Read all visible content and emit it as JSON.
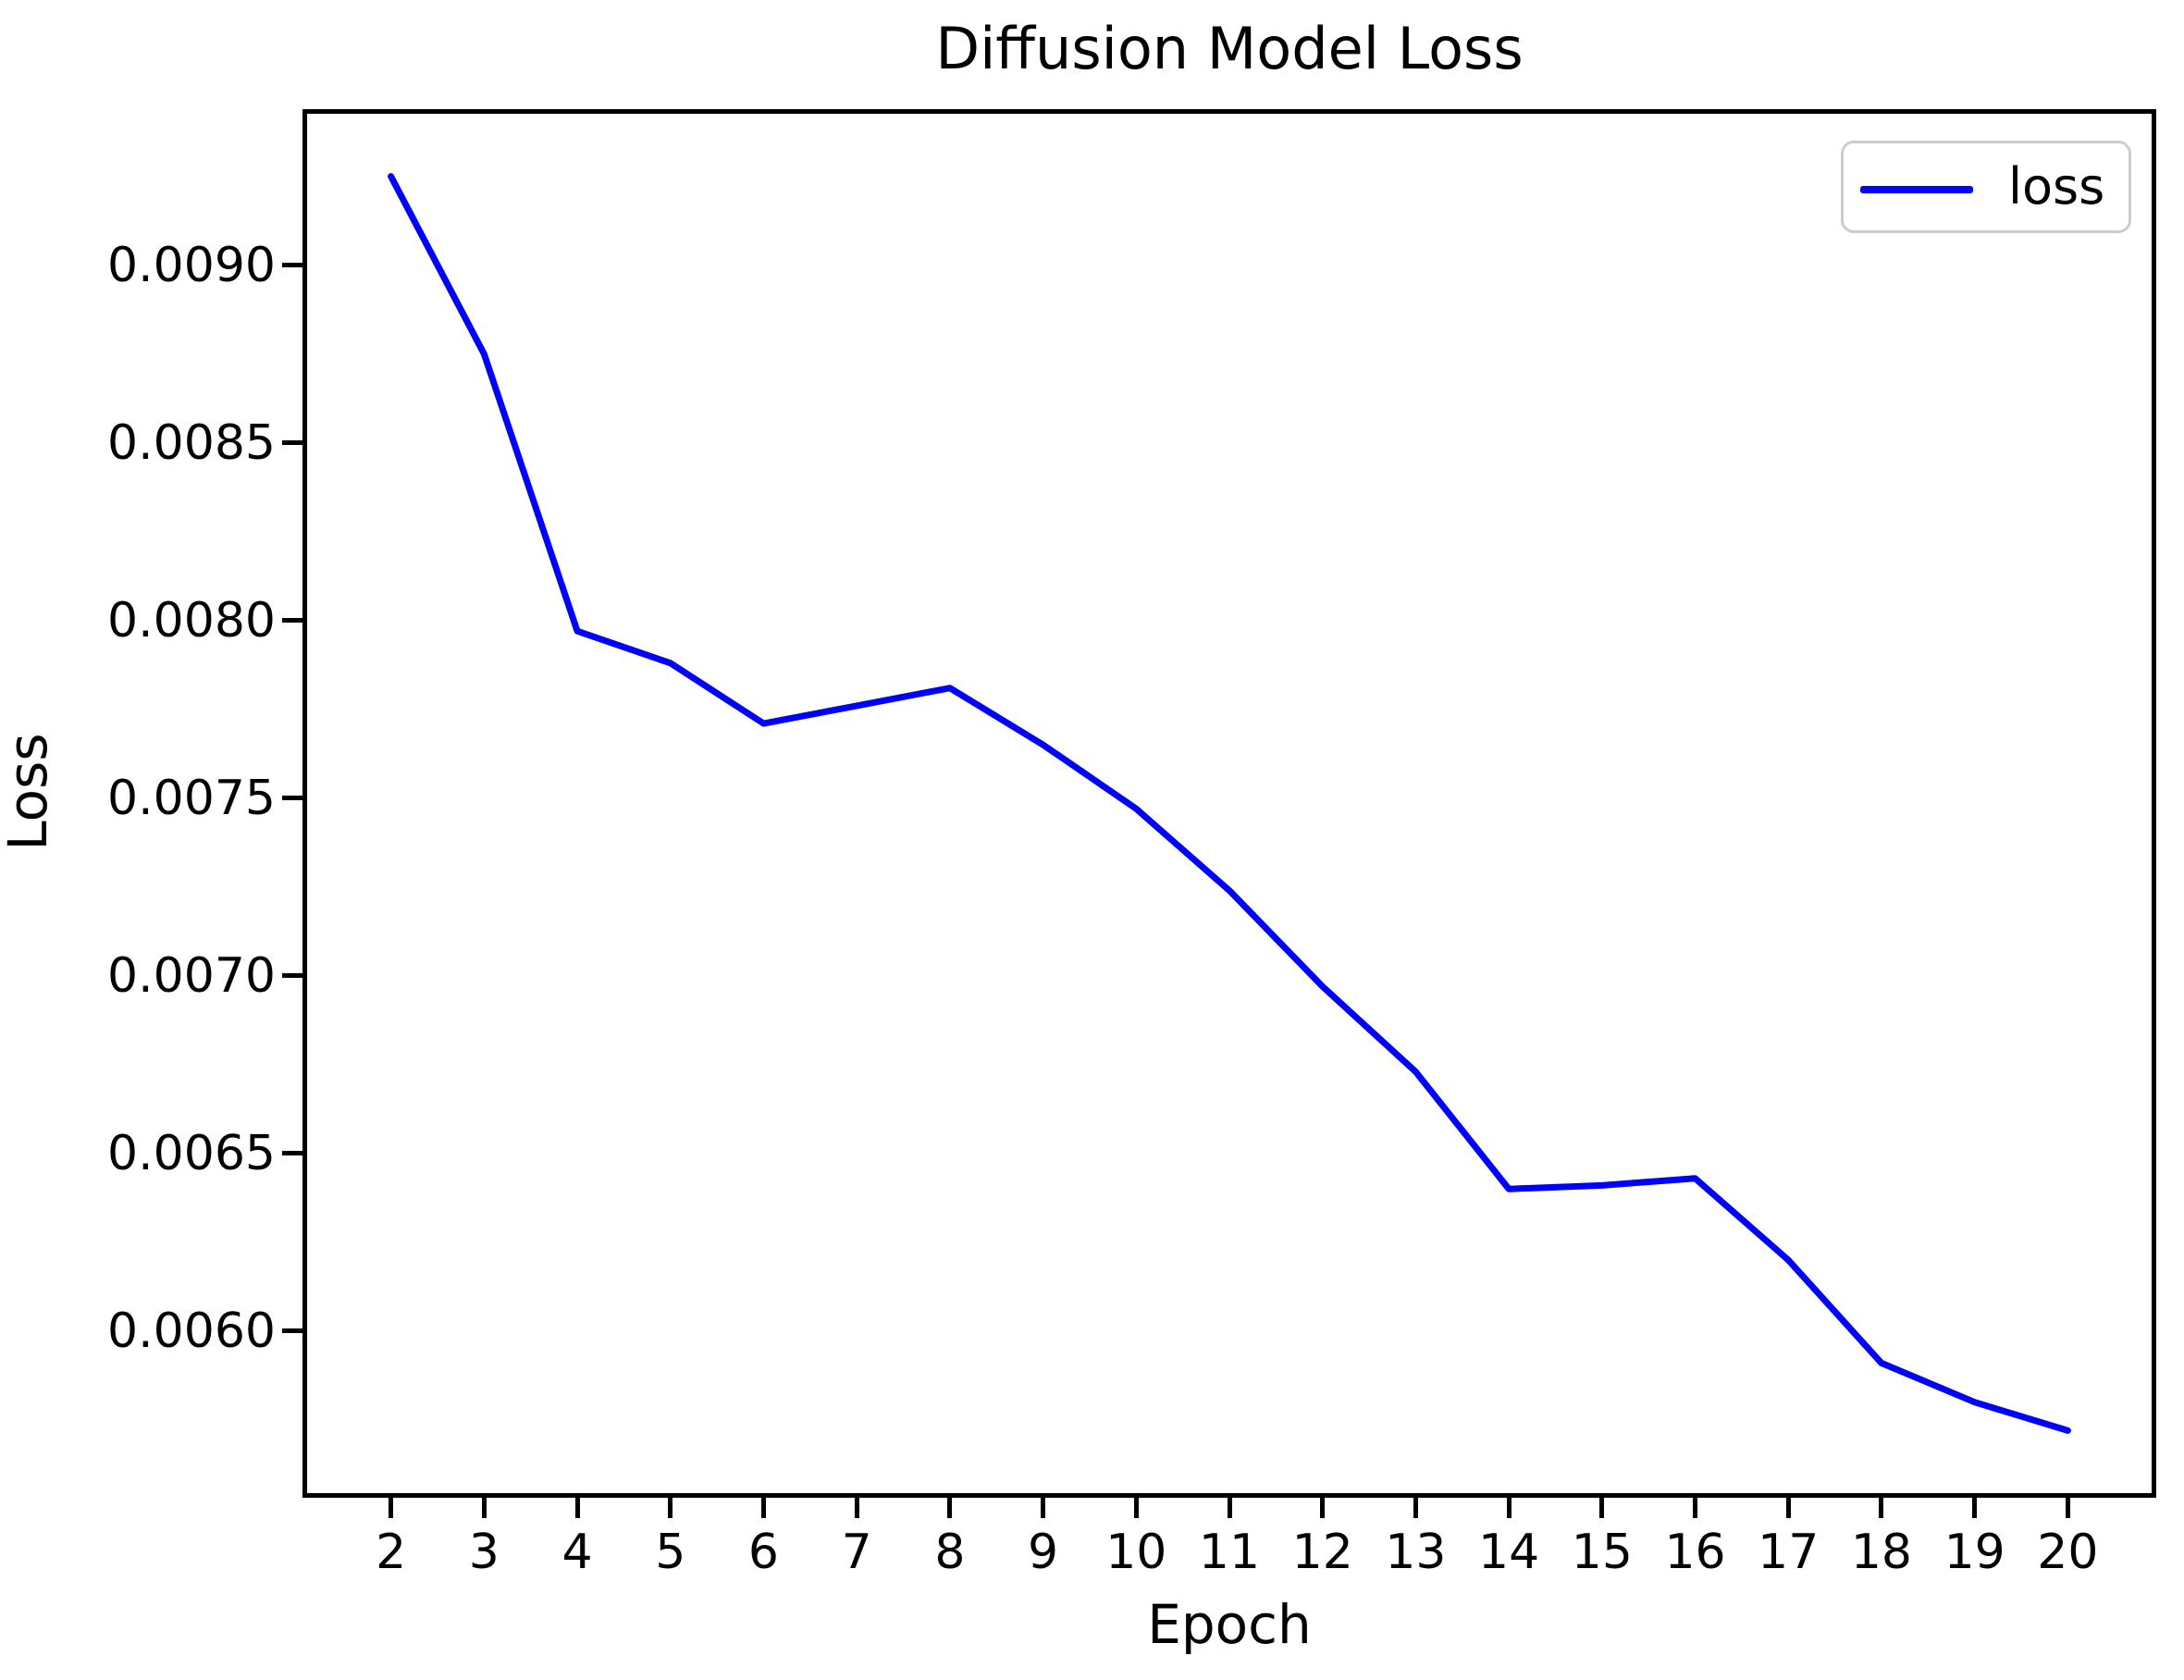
{
  "figure": {
    "background": "#ffffff",
    "spine_color": "#000000",
    "text_color": "#000000"
  },
  "chart_data": {
    "type": "line",
    "title": "Diffusion Model Loss",
    "xlabel": "Epoch",
    "ylabel": "Loss",
    "grid": false,
    "xlim": [
      1.1,
      20.9
    ],
    "ylim": [
      0.005544,
      0.009426
    ],
    "xticks": [
      2,
      3,
      4,
      5,
      6,
      7,
      8,
      9,
      10,
      11,
      12,
      13,
      14,
      15,
      16,
      17,
      18,
      19,
      20
    ],
    "xtick_labels": [
      "2",
      "3",
      "4",
      "5",
      "6",
      "7",
      "8",
      "9",
      "10",
      "11",
      "12",
      "13",
      "14",
      "15",
      "16",
      "17",
      "18",
      "19",
      "20"
    ],
    "ytick_values": [
      0.006,
      0.0065,
      0.007,
      0.0075,
      0.008,
      0.0085,
      0.009
    ],
    "ytick_labels": [
      "0.0060",
      "0.0065",
      "0.0070",
      "0.0075",
      "0.0080",
      "0.0085",
      "0.0090"
    ],
    "legend": {
      "position": "upper right",
      "entries": [
        "loss"
      ]
    },
    "series": [
      {
        "name": "loss",
        "color": "#0000ff",
        "x": [
          2,
          3,
          4,
          5,
          6,
          7,
          8,
          9,
          10,
          11,
          12,
          13,
          14,
          15,
          16,
          17,
          18,
          19,
          20
        ],
        "y": [
          0.00925,
          0.00875,
          0.00797,
          0.00788,
          0.00771,
          0.00776,
          0.00781,
          0.00765,
          0.00747,
          0.00724,
          0.00697,
          0.00673,
          0.0064,
          0.00641,
          0.00643,
          0.0062,
          0.00591,
          0.0058,
          0.00572
        ]
      }
    ]
  }
}
